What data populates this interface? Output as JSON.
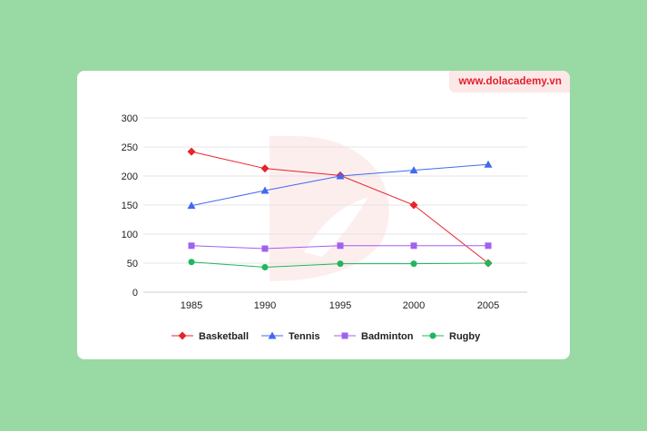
{
  "brand": {
    "text": "www.dolacademy.vn"
  },
  "chart_data": {
    "type": "line",
    "x": [
      "1985",
      "1990",
      "1995",
      "2000",
      "2005"
    ],
    "ylim": [
      0,
      300
    ],
    "yticks": [
      0,
      50,
      100,
      150,
      200,
      250,
      300
    ],
    "grid": true,
    "legend_position": "bottom",
    "series": [
      {
        "name": "Basketball",
        "color": "#e8232a",
        "marker": "diamond",
        "values": [
          242,
          213,
          201,
          150,
          50
        ]
      },
      {
        "name": "Tennis",
        "color": "#4169f0",
        "marker": "triangle",
        "values": [
          149,
          175,
          200,
          210,
          220
        ]
      },
      {
        "name": "Badminton",
        "color": "#a060f0",
        "marker": "square",
        "values": [
          80,
          75,
          80,
          80,
          80
        ]
      },
      {
        "name": "Rugby",
        "color": "#1fb75c",
        "marker": "circle",
        "values": [
          52,
          43,
          49,
          49,
          50
        ]
      }
    ]
  }
}
